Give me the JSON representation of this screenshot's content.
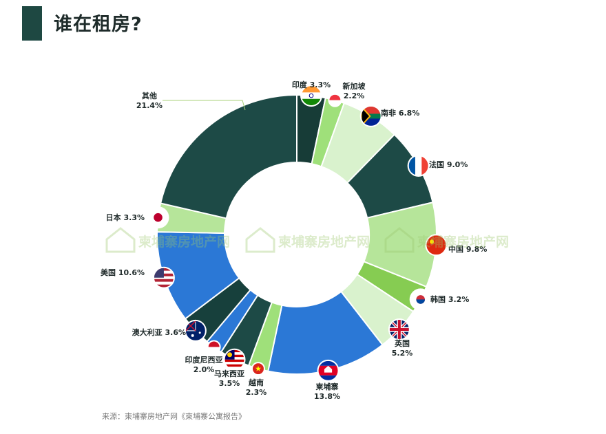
{
  "header": {
    "title": "谁在租房?"
  },
  "source": "来源：柬埔寨房地产网《柬埔寨公寓报告》",
  "watermark": "柬埔寨房地产网",
  "colors": {
    "dark": "#1d4a46",
    "darker": "#17403c",
    "lightGreen": "#a8e08a",
    "paleGreen": "#d9f2cd",
    "brightGreen": "#8fd46b",
    "blue": "#2b78d6"
  },
  "chart_data": {
    "type": "pie",
    "donut": true,
    "slices": [
      {
        "label": "印度",
        "value": 3.3,
        "display": "3.3%",
        "color": "#173c37",
        "flag": "india"
      },
      {
        "label": "新加坡",
        "value": 2.2,
        "display": "2.2%",
        "color": "#9fe07a",
        "flag": "singapore"
      },
      {
        "label": "南非",
        "value": 6.8,
        "display": "6.8%",
        "color": "#d9f2cd",
        "flag": "south-africa"
      },
      {
        "label": "法国",
        "value": 9.0,
        "display": "9.0%",
        "color": "#1d4a46",
        "flag": "france"
      },
      {
        "label": "中国",
        "value": 9.8,
        "display": "9.8%",
        "color": "#b6e59a",
        "flag": "china"
      },
      {
        "label": "韩国",
        "value": 3.2,
        "display": "3.2%",
        "color": "#86cc52",
        "flag": "korea"
      },
      {
        "label": "英国",
        "value": 5.2,
        "display": "5.2%",
        "color": "#d9f2cd",
        "flag": "uk"
      },
      {
        "label": "柬埔寨",
        "value": 13.8,
        "display": "13.8%",
        "color": "#2b78d6",
        "flag": "cambodia"
      },
      {
        "label": "越南",
        "value": 2.3,
        "display": "2.3%",
        "color": "#9fe07a",
        "flag": "vietnam"
      },
      {
        "label": "马来西亚",
        "value": 3.5,
        "display": "3.5%",
        "color": "#1d4a46",
        "flag": "malaysia"
      },
      {
        "label": "印度尼西亚",
        "value": 2.0,
        "display": "2.0%",
        "color": "#2b78d6",
        "flag": "indonesia"
      },
      {
        "label": "澳大利亚",
        "value": 3.6,
        "display": "3.6%",
        "color": "#17403c",
        "flag": "australia"
      },
      {
        "label": "美国",
        "value": 10.6,
        "display": "10.6%",
        "color": "#2b78d6",
        "flag": "usa"
      },
      {
        "label": "日本",
        "value": 3.3,
        "display": "3.3%",
        "color": "#b6e59a",
        "flag": "japan"
      },
      {
        "label": "其他",
        "value": 21.4,
        "display": "21.4%",
        "color": "#1d4a46",
        "flag": ""
      }
    ]
  }
}
